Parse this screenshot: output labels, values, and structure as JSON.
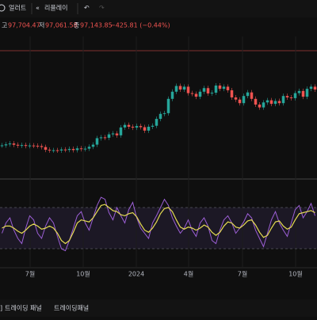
{
  "toolbar": {
    "alert": "얼러트",
    "replay": "리플레이"
  },
  "ohlc": {
    "high_label": "고",
    "high": "97,704.47",
    "low_label": "저",
    "low": "97,061.58",
    "close_label": "종",
    "close": "97,143.85",
    "change": "−425.81 (−0.44%)"
  },
  "chart": {
    "price": {
      "up_color": "#26a69a",
      "down_color": "#ef5350",
      "values": [
        29500,
        30200,
        30800,
        29900,
        29300,
        29700,
        29100,
        29400,
        29200,
        29000,
        28300,
        26400,
        26000,
        26100,
        25900,
        26600,
        26300,
        27000,
        26200,
        27400,
        26900,
        27200,
        28500,
        30000,
        34500,
        35100,
        34800,
        37200,
        37800,
        36500,
        42000,
        43800,
        42500,
        41900,
        43000,
        42200,
        39800,
        42500,
        43200,
        48000,
        51500,
        52000,
        62000,
        67000,
        71000,
        68500,
        70500,
        66000,
        65500,
        63500,
        67000,
        69500,
        65800,
        66300,
        71300,
        69000,
        70500,
        68000,
        63000,
        61500,
        59000,
        64000,
        66500,
        62000,
        58000,
        56000,
        59500,
        61000,
        58500,
        60500,
        59000,
        64000,
        63000,
        62500,
        66000,
        67500,
        63500,
        69000,
        70500,
        68500
      ]
    },
    "rsi": {
      "color": "#9c5fd6",
      "ma_color": "#e6dc52",
      "upper_band": 70,
      "lower_band": 30,
      "values": [
        45,
        55,
        60,
        48,
        40,
        35,
        50,
        62,
        58,
        45,
        40,
        52,
        60,
        55,
        42,
        30,
        28,
        38,
        50,
        62,
        66,
        55,
        48,
        60,
        72,
        80,
        78,
        65,
        58,
        70,
        62,
        55,
        68,
        75,
        60,
        50,
        45,
        40,
        55,
        62,
        70,
        78,
        72,
        60,
        52,
        45,
        50,
        58,
        48,
        42,
        55,
        60,
        52,
        38,
        35,
        48,
        58,
        62,
        55,
        45,
        50,
        56,
        64,
        60,
        48,
        40,
        32,
        45,
        58,
        66,
        55,
        48,
        42,
        55,
        68,
        72,
        60,
        66,
        74,
        62
      ],
      "ma": [
        50,
        52,
        52,
        50,
        47,
        45,
        48,
        52,
        54,
        52,
        49,
        50,
        52,
        50,
        45,
        38,
        35,
        38,
        46,
        55,
        58,
        57,
        56,
        60,
        66,
        72,
        73,
        70,
        67,
        66,
        63,
        62,
        64,
        65,
        61,
        54,
        48,
        46,
        50,
        56,
        64,
        69,
        70,
        66,
        58,
        51,
        49,
        51,
        50,
        48,
        50,
        53,
        51,
        46,
        43,
        46,
        52,
        56,
        55,
        51,
        50,
        53,
        57,
        58,
        53,
        46,
        41,
        43,
        50,
        56,
        57,
        52,
        49,
        51,
        58,
        64,
        65,
        66,
        67,
        65
      ]
    },
    "x_labels": [
      "7월",
      "10월",
      "2024",
      "4월",
      "7월",
      "10월"
    ]
  },
  "bottom": {
    "tab1": "트레이딩 패널",
    "tab2": "트레이딩패널"
  }
}
